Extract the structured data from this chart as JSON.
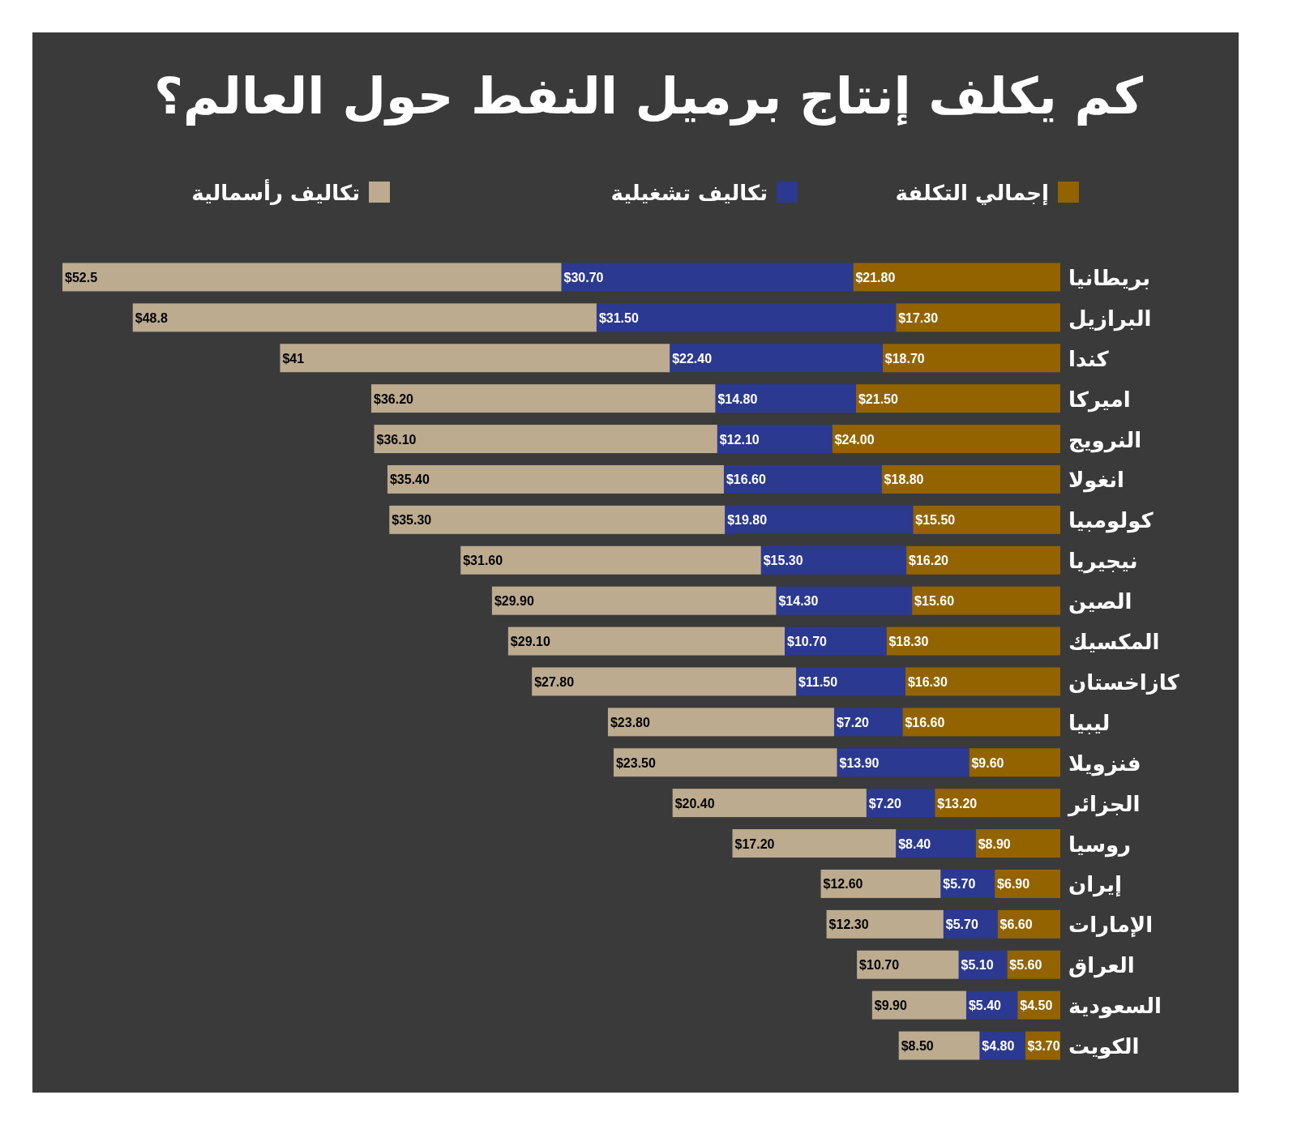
{
  "chart_data": {
    "type": "bar",
    "orientation": "horizontal",
    "stacked": true,
    "title": "كم يكلف إنتاج برميل النفط حول العالم؟",
    "legend": "top",
    "categories": [
      "بريطانيا",
      "البرازيل",
      "كندا",
      "اميركا",
      "النرويج",
      "انغولا",
      "كولومبيا",
      "نيجيريا",
      "الصين",
      "المكسيك",
      "كازاخستان",
      "ليبيا",
      "فنزويلا",
      "الجزائر",
      "روسيا",
      "إيران",
      "الإمارات",
      "العراق",
      "السعودية",
      "الكويت"
    ],
    "series": [
      {
        "name": "إجمالي التكلفة",
        "color": "#936300",
        "values": [
          21.8,
          17.3,
          18.7,
          21.5,
          24.0,
          18.8,
          15.5,
          16.2,
          15.6,
          18.3,
          16.3,
          16.6,
          9.6,
          13.2,
          8.9,
          6.9,
          6.6,
          5.6,
          4.5,
          3.7
        ],
        "value_labels": [
          "$21.80",
          "$17.30",
          "$18.70",
          "$21.50",
          "$24.00",
          "$18.80",
          "$15.50",
          "$16.20",
          "$15.60",
          "$18.30",
          "$16.30",
          "$16.60",
          "$9.60",
          "$13.20",
          "$8.90",
          "$6.90",
          "$6.60",
          "$5.60",
          "$4.50",
          "$3.70"
        ]
      },
      {
        "name": "تكاليف تشغيلية",
        "color": "#2b3990",
        "values": [
          30.7,
          31.5,
          22.4,
          14.8,
          12.1,
          16.6,
          19.8,
          15.3,
          14.3,
          10.7,
          11.5,
          7.2,
          13.9,
          7.2,
          8.4,
          5.7,
          5.7,
          5.1,
          5.4,
          4.8
        ],
        "value_labels": [
          "$30.70",
          "$31.50",
          "$22.40",
          "$14.80",
          "$12.10",
          "$16.60",
          "$19.80",
          "$15.30",
          "$14.30",
          "$10.70",
          "$11.50",
          "$7.20",
          "$13.90",
          "$7.20",
          "$8.40",
          "$5.70",
          "$5.70",
          "$5.10",
          "$5.40",
          "$4.80"
        ]
      },
      {
        "name": "تكاليف رأسمالية",
        "color": "#bcab8f",
        "values": [
          52.5,
          48.8,
          41,
          36.2,
          36.1,
          35.4,
          35.3,
          31.6,
          29.9,
          29.1,
          27.8,
          23.8,
          23.5,
          20.4,
          17.2,
          12.6,
          12.3,
          10.7,
          9.9,
          8.5
        ],
        "value_labels": [
          "$52.5",
          "$48.8",
          "$41",
          "$36.20",
          "$36.10",
          "$35.40",
          "$35.30",
          "$31.60",
          "$29.90",
          "$29.10",
          "$27.80",
          "$23.80",
          "$23.50",
          "$20.40",
          "$17.20",
          "$12.60",
          "$12.30",
          "$10.70",
          "$9.90",
          "$8.50"
        ]
      }
    ]
  }
}
